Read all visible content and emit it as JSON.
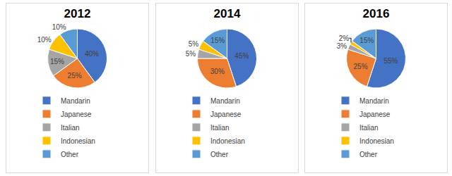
{
  "chart_data": [
    {
      "type": "pie",
      "title": "2012",
      "categories": [
        "Mandarin",
        "Japanese",
        "Italian",
        "Indonesian",
        "Other"
      ],
      "values": [
        40,
        25,
        15,
        10,
        10
      ],
      "value_labels": [
        "40%",
        "25%",
        "15%",
        "10%",
        "10%"
      ],
      "colors": [
        "#4472c4",
        "#ed7d31",
        "#a5a5a5",
        "#ffc000",
        "#5b9bd5"
      ],
      "data_labels": true,
      "legend": "bottom"
    },
    {
      "type": "pie",
      "title": "2014",
      "categories": [
        "Mandarin",
        "Japanese",
        "Italian",
        "Indonesian",
        "Other"
      ],
      "values": [
        45,
        30,
        5,
        5,
        15
      ],
      "value_labels": [
        "45%",
        "30%",
        "5%",
        "5%",
        "15%"
      ],
      "colors": [
        "#4472c4",
        "#ed7d31",
        "#a5a5a5",
        "#ffc000",
        "#5b9bd5"
      ],
      "data_labels": true,
      "legend": "bottom"
    },
    {
      "type": "pie",
      "title": "2016",
      "categories": [
        "Mandarin",
        "Japanese",
        "Italian",
        "Indonesian",
        "Other"
      ],
      "values": [
        55,
        25,
        3,
        2,
        15
      ],
      "value_labels": [
        "55%",
        "25%",
        "3%",
        "2%",
        "15%"
      ],
      "colors": [
        "#4472c4",
        "#ed7d31",
        "#a5a5a5",
        "#ffc000",
        "#5b9bd5"
      ],
      "data_labels": true,
      "legend": "bottom"
    }
  ]
}
